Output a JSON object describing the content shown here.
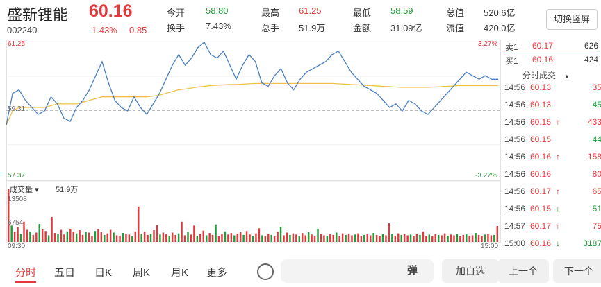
{
  "header": {
    "stock_name": "盛新锂能",
    "price": "60.16",
    "code": "002240",
    "change_pct": "1.43%",
    "change_amt": "0.85",
    "switch_label": "切换竖屏",
    "stats": [
      {
        "label": "今开",
        "value": "58.80",
        "tone": "green"
      },
      {
        "label": "最高",
        "value": "61.25",
        "tone": "red"
      },
      {
        "label": "最低",
        "value": "58.59",
        "tone": "green"
      },
      {
        "label": "总值",
        "value": "520.6亿",
        "tone": "plain"
      },
      {
        "label": "换手",
        "value": "7.43%",
        "tone": "plain"
      },
      {
        "label": "总手",
        "value": "51.9万",
        "tone": "plain"
      },
      {
        "label": "金额",
        "value": "31.09亿",
        "tone": "plain"
      },
      {
        "label": "流值",
        "value": "420.0亿",
        "tone": "plain"
      }
    ]
  },
  "chart_labels": {
    "price_high": "61.25",
    "pct_high": "3.27%",
    "price_prev": "59.31",
    "price_low": "57.37",
    "pct_low": "-3.27%",
    "vol_selector": "成交量",
    "vol_total": "51.9万",
    "vol_max": "13508",
    "vol_mid": "6754",
    "time_start": "09:30",
    "time_end": "15:00"
  },
  "chart_data": {
    "type": "line",
    "ylim": [
      57.37,
      61.25
    ],
    "prev_close": 59.31,
    "series": [
      {
        "values": [
          58.9,
          59.8,
          59.9,
          59.6,
          59.4,
          59.2,
          59.3,
          59.7,
          59.5,
          59.1,
          59.0,
          59.4,
          59.6,
          59.9,
          60.3,
          60.7,
          60.1,
          59.6,
          59.4,
          59.3,
          59.7,
          59.4,
          59.2,
          59.5,
          59.8,
          60.2,
          60.6,
          60.9,
          60.6,
          60.8,
          61.1,
          61.25,
          60.9,
          60.8,
          61.0,
          60.6,
          60.2,
          60.6,
          60.9,
          60.7,
          60.1,
          60.0,
          60.3,
          60.5,
          60.1,
          59.9,
          60.2,
          60.4,
          60.5,
          60.6,
          60.7,
          60.9,
          61.0,
          60.7,
          60.4,
          60.2,
          60.0,
          59.9,
          59.8,
          59.6,
          59.4,
          59.5,
          59.3,
          59.6,
          59.5,
          59.3,
          59.2,
          59.4,
          59.6,
          59.8,
          60.0,
          60.2,
          60.4,
          60.3,
          60.2,
          60.3,
          60.2,
          60.2
        ]
      },
      {
        "values": [
          58.9,
          59.3,
          59.4,
          59.4,
          59.4,
          59.4,
          59.4,
          59.45,
          59.5,
          59.5,
          59.5,
          59.5,
          59.55,
          59.6,
          59.65,
          59.7,
          59.7,
          59.7,
          59.7,
          59.7,
          59.7,
          59.7,
          59.7,
          59.72,
          59.75,
          59.8,
          59.85,
          59.9,
          59.92,
          59.95,
          59.98,
          60.0,
          60.02,
          60.03,
          60.04,
          60.05,
          60.05,
          60.06,
          60.07,
          60.08,
          60.08,
          60.08,
          60.08,
          60.08,
          60.08,
          60.08,
          60.08,
          60.08,
          60.08,
          60.08,
          60.08,
          60.08,
          60.07,
          60.06,
          60.05,
          60.04,
          60.03,
          60.02,
          60.01,
          60.0,
          59.99,
          59.98,
          59.97,
          59.97,
          59.97,
          59.97,
          59.97,
          59.98,
          59.99,
          60.0,
          60.01,
          60.02,
          60.02,
          60.02,
          60.02,
          60.02,
          60.02,
          60.02
        ]
      }
    ],
    "volume": {
      "max": 13508,
      "values": [
        13508,
        4200,
        2600,
        3800,
        2100,
        5200,
        3100,
        2600,
        1800,
        2400,
        4600,
        3200,
        2800,
        1700,
        6400,
        2300,
        2100,
        3100,
        1900,
        2700,
        3400,
        2600,
        2200,
        3000,
        1800,
        2600,
        2400,
        1500,
        2800,
        3300,
        2500,
        1800,
        2200,
        3100,
        2400,
        1700,
        1600,
        2300,
        2100,
        1900,
        1500,
        2700,
        9100,
        2100,
        2600,
        1800,
        2000,
        3000,
        4300,
        1900,
        2400,
        2000,
        1600,
        2400,
        1800,
        2200,
        5200,
        1700,
        2600,
        1900,
        4200,
        1600,
        2100,
        2900,
        1700,
        2300,
        1800,
        4500,
        1500,
        2000,
        2700,
        1900,
        2300,
        1700,
        2100,
        2500,
        1800,
        2800,
        1900,
        1600,
        2200,
        3500,
        1700,
        1500,
        2100,
        1800,
        1400,
        2600,
        3900,
        1700,
        2400,
        1800,
        2200,
        1900,
        1600,
        2300,
        1700,
        2500,
        1900,
        1400,
        3400,
        2100,
        1700,
        1600,
        2000,
        1800,
        2400,
        1500,
        2200,
        1800,
        2100,
        1700,
        1900,
        2200,
        1600,
        1800,
        2100,
        1700,
        2300,
        1800,
        1500,
        2000,
        1700,
        4800,
        2100,
        1600,
        2200,
        1800,
        2000,
        1700,
        1900,
        1600,
        2100,
        1800,
        2700,
        1600,
        1900,
        1500,
        2000,
        1800,
        1700,
        2200,
        1600,
        1900,
        1700,
        2000,
        1500,
        1800,
        2100,
        1600,
        1700,
        2300,
        1800,
        1600,
        1900,
        2100,
        1700,
        1800,
        4100
      ],
      "colors_up": "#e4393c",
      "colors_down": "#1f9d3a"
    }
  },
  "orderbook": {
    "sell": {
      "label": "卖1",
      "price": "60.17",
      "qty": "626"
    },
    "buy": {
      "label": "买1",
      "price": "60.16",
      "qty": "424"
    }
  },
  "trades_title": "分时成交",
  "trades": [
    {
      "time": "14:56",
      "price": "60.13",
      "arrow": "",
      "qty": "35",
      "tone": "red"
    },
    {
      "time": "14:56",
      "price": "60.13",
      "arrow": "",
      "qty": "45",
      "tone": "green"
    },
    {
      "time": "14:56",
      "price": "60.15",
      "arrow": "↑",
      "qty": "433",
      "tone": "red"
    },
    {
      "time": "14:56",
      "price": "60.15",
      "arrow": "",
      "qty": "44",
      "tone": "green"
    },
    {
      "time": "14:56",
      "price": "60.16",
      "arrow": "↑",
      "qty": "158",
      "tone": "red"
    },
    {
      "time": "14:56",
      "price": "60.16",
      "arrow": "",
      "qty": "80",
      "tone": "red"
    },
    {
      "time": "14:56",
      "price": "60.17",
      "arrow": "↑",
      "qty": "65",
      "tone": "red"
    },
    {
      "time": "14:56",
      "price": "60.15",
      "arrow": "↓",
      "qty": "51",
      "tone": "green"
    },
    {
      "time": "14:57",
      "price": "60.17",
      "arrow": "↑",
      "qty": "75",
      "tone": "red"
    },
    {
      "time": "15:00",
      "price": "60.16",
      "arrow": "↓",
      "qty": "3187",
      "tone": "green"
    }
  ],
  "tabs": [
    "分时",
    "五日",
    "日K",
    "周K",
    "月K",
    "更多"
  ],
  "bottom": {
    "danmu": "弹",
    "add_watch": "加自选",
    "prev": "上一个",
    "next": "下一个"
  },
  "colors": {
    "up": "#e4393c",
    "down": "#1f9d3a",
    "avg_line": "#f0c24b",
    "price_line": "#4a7fc1"
  }
}
